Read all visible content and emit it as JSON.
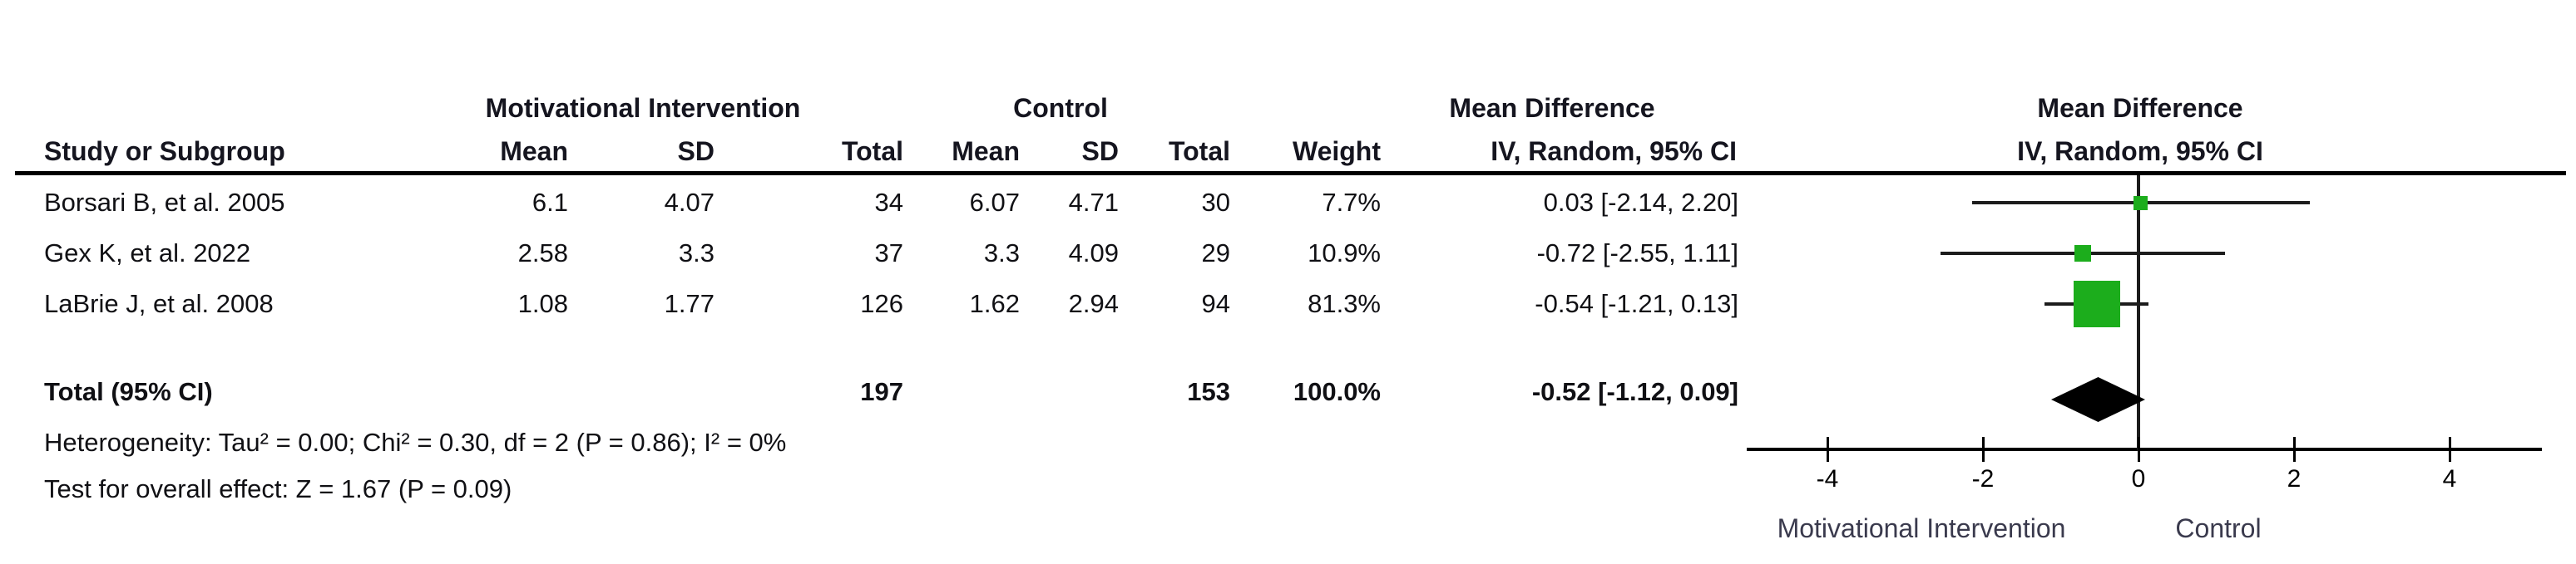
{
  "table": {
    "group_headers": {
      "intervention": "Motivational Intervention",
      "control": "Control",
      "mean_difference": "Mean Difference"
    },
    "column_headers": {
      "study": "Study or Subgroup",
      "mi_mean": "Mean",
      "mi_sd": "SD",
      "mi_total": "Total",
      "c_mean": "Mean",
      "c_sd": "SD",
      "c_total": "Total",
      "weight": "Weight",
      "ci": "IV, Random, 95% CI"
    },
    "rows": [
      {
        "study": "Borsari B, et al. 2005",
        "mi_mean": "6.1",
        "mi_sd": "4.07",
        "mi_total": "34",
        "c_mean": "6.07",
        "c_sd": "4.71",
        "c_total": "30",
        "weight": "7.7%",
        "ci": "0.03 [-2.14, 2.20]"
      },
      {
        "study": "Gex K, et al. 2022",
        "mi_mean": "2.58",
        "mi_sd": "3.3",
        "mi_total": "37",
        "c_mean": "3.3",
        "c_sd": "4.09",
        "c_total": "29",
        "weight": "10.9%",
        "ci": "-0.72 [-2.55, 1.11]"
      },
      {
        "study": "LaBrie J, et al. 2008",
        "mi_mean": "1.08",
        "mi_sd": "1.77",
        "mi_total": "126",
        "c_mean": "1.62",
        "c_sd": "2.94",
        "c_total": "94",
        "weight": "81.3%",
        "ci": "-0.54 [-1.21, 0.13]"
      }
    ],
    "total_row": {
      "label": "Total (95% CI)",
      "mi_total": "197",
      "c_total": "153",
      "weight": "100.0%",
      "ci": "-0.52 [-1.12, 0.09]"
    },
    "footnotes": {
      "heterogeneity": "Heterogeneity: Tau² = 0.00; Chi² = 0.30, df = 2 (P = 0.86); I² = 0%",
      "overall_effect": "Test for overall effect: Z = 1.67 (P = 0.09)"
    }
  },
  "plot": {
    "header_line1": "Mean Difference",
    "header_line2": "IV, Random, 95% CI",
    "favours_left": "Motivational Intervention",
    "favours_right": "Control"
  },
  "colors": {
    "square_green": "#1cad1c",
    "diamond_black": "#000000",
    "line_black": "#1c1c1c"
  },
  "chart_data": {
    "type": "forest",
    "effect_measure": "Mean Difference, IV, Random, 95% CI",
    "studies": [
      {
        "name": "Borsari B, et al. 2005",
        "md": 0.03,
        "ci_low": -2.14,
        "ci_high": 2.2,
        "weight_pct": 7.7
      },
      {
        "name": "Gex K, et al. 2022",
        "md": -0.72,
        "ci_low": -2.55,
        "ci_high": 1.11,
        "weight_pct": 10.9
      },
      {
        "name": "LaBrie J, et al. 2008",
        "md": -0.54,
        "ci_low": -1.21,
        "ci_high": 0.13,
        "weight_pct": 81.3
      }
    ],
    "total": {
      "md": -0.52,
      "ci_low": -1.12,
      "ci_high": 0.09
    },
    "x_ticks": [
      -4,
      -2,
      0,
      2,
      4
    ],
    "xlim": [
      -5.05,
      5.2
    ],
    "grid": false,
    "legend": "none",
    "favours_left": "Motivational Intervention",
    "favours_right": "Control"
  }
}
